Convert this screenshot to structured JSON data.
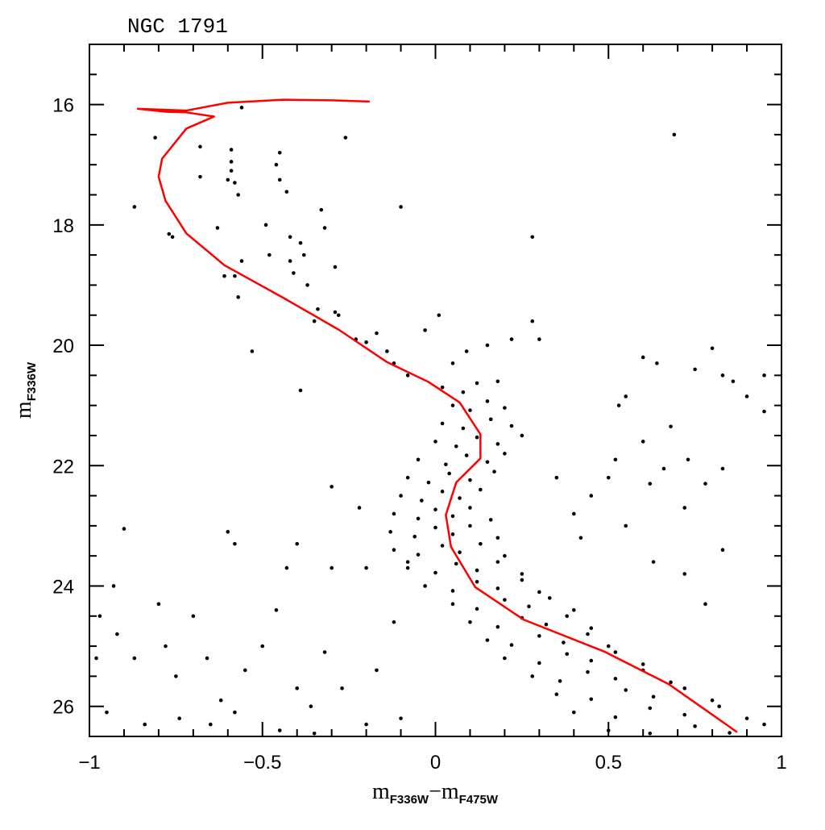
{
  "chart_data": {
    "type": "scatter",
    "title": "NGC 1791",
    "xlabel": [
      "m",
      "F336W",
      "−m",
      "F475W"
    ],
    "ylabel": [
      "m",
      "F336W"
    ],
    "xlim": [
      -1,
      1
    ],
    "ylim": [
      26.5,
      15
    ],
    "xticks": [
      {
        "value": -1,
        "label": "−1"
      },
      {
        "value": -0.5,
        "label": "−0.5"
      },
      0,
      0.5,
      1
    ],
    "xminor": [
      -0.9,
      -0.8,
      -0.7,
      -0.6,
      -0.4,
      -0.3,
      -0.2,
      -0.1,
      0.1,
      0.2,
      0.3,
      0.4,
      0.6,
      0.7,
      0.8,
      0.9
    ],
    "yticks": [
      16,
      18,
      20,
      22,
      24,
      26
    ],
    "yminor": [
      15.5,
      16.5,
      17,
      17.5,
      18.5,
      19,
      19.5,
      20.5,
      21,
      21.5,
      22.5,
      23,
      23.5,
      24.5,
      25,
      25.5,
      26.5
    ],
    "series": [
      {
        "type": "scatter",
        "color": "#000000",
        "x": [
          -0.87,
          -0.81,
          -0.76,
          -0.77,
          -0.68,
          -0.68,
          -0.63,
          -0.6,
          -0.59,
          -0.59,
          -0.59,
          -0.58,
          -0.57,
          -0.61,
          -0.58,
          -0.57,
          -0.56,
          -0.56,
          -0.53,
          -0.49,
          -0.48,
          -0.46,
          -0.45,
          -0.45,
          -0.43,
          -0.42,
          -0.42,
          -0.41,
          -0.39,
          -0.38,
          -0.37,
          -0.35,
          -0.34,
          -0.33,
          -0.32,
          -0.29,
          -0.29,
          -0.26,
          -0.28,
          -0.23,
          -0.2,
          -0.17,
          -0.1,
          -0.14,
          -0.12,
          -0.08,
          -0.03,
          0.01,
          -0.39,
          0.28,
          0.69,
          0.28,
          0.3,
          0.22,
          0.15,
          0.09,
          0.05,
          0.18,
          0.6,
          0.64,
          0.75,
          0.8,
          0.83,
          0.86,
          0.9,
          0.95,
          0.95,
          0.55,
          0.53,
          0.68,
          0.6,
          0.52,
          0.5,
          0.45,
          0.4,
          0.62,
          0.66,
          0.73,
          0.78,
          0.83,
          0.72,
          0.35,
          0.42,
          0.55,
          0.63,
          0.72,
          0.83,
          0.78,
          -0.97,
          -0.93,
          -0.9,
          -0.92,
          -0.87,
          -0.8,
          -0.78,
          -0.75,
          -0.7,
          -0.66,
          -0.62,
          -0.58,
          -0.55,
          -0.5,
          -0.46,
          -0.43,
          -0.4,
          -0.36,
          -0.32,
          -0.3,
          -0.3,
          -0.27,
          -0.22,
          -0.2,
          -0.17,
          -0.12,
          -0.1,
          -0.08,
          -0.6,
          -0.58,
          -0.4,
          -0.98,
          -0.95,
          -0.84,
          -0.74,
          -0.65,
          -0.45,
          -0.35,
          -0.2,
          0.02,
          0.08,
          0.12,
          0.05,
          0.1,
          0.15,
          0.2,
          0.02,
          0.08,
          0.16,
          0.22,
          0.0,
          0.06,
          0.12,
          0.18,
          0.25,
          -0.05,
          0.03,
          0.09,
          0.15,
          0.2,
          -0.08,
          -0.02,
          0.04,
          0.1,
          0.17,
          -0.1,
          -0.04,
          0.02,
          0.07,
          0.13,
          -0.12,
          -0.05,
          0.0,
          0.05,
          0.1,
          0.16,
          -0.13,
          -0.06,
          0.0,
          0.05,
          0.1,
          0.18,
          -0.12,
          -0.05,
          0.02,
          0.07,
          0.13,
          0.2,
          -0.08,
          0.0,
          0.06,
          0.12,
          0.18,
          0.25,
          -0.03,
          0.05,
          0.12,
          0.18,
          0.25,
          0.3,
          0.05,
          0.12,
          0.2,
          0.27,
          0.33,
          0.4,
          0.1,
          0.18,
          0.25,
          0.32,
          0.38,
          0.45,
          0.15,
          0.22,
          0.3,
          0.37,
          0.44,
          0.5,
          0.2,
          0.3,
          0.38,
          0.45,
          0.52,
          0.6,
          0.28,
          0.36,
          0.44,
          0.52,
          0.6,
          0.68,
          0.35,
          0.45,
          0.55,
          0.63,
          0.72,
          0.8,
          0.4,
          0.52,
          0.62,
          0.72,
          0.82,
          0.9,
          0.5,
          0.62,
          0.75,
          0.85,
          0.95
        ],
        "values": [
          17.7,
          16.55,
          18.2,
          18.15,
          16.7,
          17.2,
          18.05,
          17.25,
          16.75,
          16.95,
          17.1,
          17.3,
          17.5,
          18.85,
          18.85,
          19.2,
          18.6,
          16.05,
          20.1,
          18.0,
          18.5,
          17.0,
          16.8,
          17.25,
          17.45,
          18.2,
          18.6,
          18.8,
          18.3,
          18.5,
          19.0,
          19.6,
          19.4,
          17.75,
          18.05,
          18.7,
          19.45,
          16.55,
          19.5,
          19.9,
          19.95,
          19.8,
          17.7,
          20.1,
          20.3,
          20.5,
          19.75,
          19.5,
          20.75,
          18.2,
          16.5,
          19.6,
          19.9,
          19.9,
          20.0,
          20.1,
          20.3,
          20.6,
          20.2,
          20.3,
          20.4,
          20.05,
          20.5,
          20.6,
          20.85,
          20.5,
          21.1,
          20.85,
          21.0,
          21.35,
          21.6,
          21.9,
          22.2,
          22.5,
          22.8,
          22.3,
          22.05,
          21.9,
          22.3,
          22.05,
          22.7,
          22.2,
          23.2,
          23.0,
          23.6,
          23.8,
          23.4,
          24.3,
          24.5,
          24.0,
          23.05,
          24.8,
          25.2,
          24.3,
          25.0,
          25.5,
          24.5,
          25.2,
          25.9,
          26.1,
          25.4,
          25.0,
          24.4,
          23.7,
          25.7,
          26.0,
          25.1,
          22.35,
          23.7,
          25.7,
          22.7,
          23.7,
          25.4,
          24.6,
          26.2,
          23.6,
          23.1,
          23.3,
          23.3,
          25.2,
          26.1,
          26.3,
          26.2,
          26.3,
          26.4,
          26.45,
          26.3,
          20.7,
          20.78,
          20.63,
          21.0,
          21.08,
          20.93,
          21.04,
          21.3,
          21.38,
          21.23,
          21.34,
          21.6,
          21.68,
          21.53,
          21.64,
          21.5,
          21.9,
          21.98,
          21.83,
          21.94,
          21.8,
          22.2,
          22.28,
          22.13,
          22.24,
          22.1,
          22.5,
          22.58,
          22.43,
          22.54,
          22.4,
          22.8,
          22.88,
          22.73,
          22.84,
          22.7,
          22.9,
          23.1,
          23.18,
          23.03,
          23.14,
          23.0,
          23.2,
          23.4,
          23.48,
          23.33,
          23.44,
          23.3,
          23.5,
          23.7,
          23.78,
          23.63,
          23.74,
          23.6,
          23.8,
          24.0,
          24.08,
          23.93,
          24.04,
          23.9,
          24.1,
          24.3,
          24.38,
          24.23,
          24.34,
          24.2,
          24.4,
          24.6,
          24.68,
          24.53,
          24.64,
          24.5,
          24.7,
          24.9,
          24.98,
          24.83,
          24.94,
          24.8,
          25.0,
          25.2,
          25.28,
          25.13,
          25.24,
          25.1,
          25.3,
          25.5,
          25.58,
          25.43,
          25.54,
          25.4,
          25.6,
          25.8,
          25.88,
          25.73,
          25.84,
          25.7,
          25.9,
          26.1,
          26.18,
          26.03,
          26.14,
          26.0,
          26.2,
          26.4,
          26.45,
          26.33,
          26.44,
          26.3
        ]
      },
      {
        "type": "line",
        "color": "#ff0000",
        "x": [
          -0.19,
          -0.3,
          -0.44,
          -0.6,
          -0.72,
          -0.86,
          -0.78,
          -0.72,
          -0.64,
          -0.72,
          -0.79,
          -0.8,
          -0.78,
          -0.72,
          -0.61,
          -0.44,
          -0.28,
          -0.14,
          -0.02,
          0.07,
          0.13,
          0.13,
          0.06,
          0.03,
          0.045,
          0.115,
          0.255,
          0.488,
          0.674,
          0.872
        ],
        "values": [
          15.95,
          15.93,
          15.92,
          15.97,
          16.1,
          16.07,
          16.12,
          16.13,
          16.2,
          16.4,
          16.9,
          17.2,
          17.6,
          18.14,
          18.67,
          19.21,
          19.74,
          20.28,
          20.61,
          20.95,
          21.48,
          21.88,
          22.28,
          22.82,
          23.35,
          24.02,
          24.56,
          25.09,
          25.63,
          26.43
        ]
      }
    ]
  }
}
